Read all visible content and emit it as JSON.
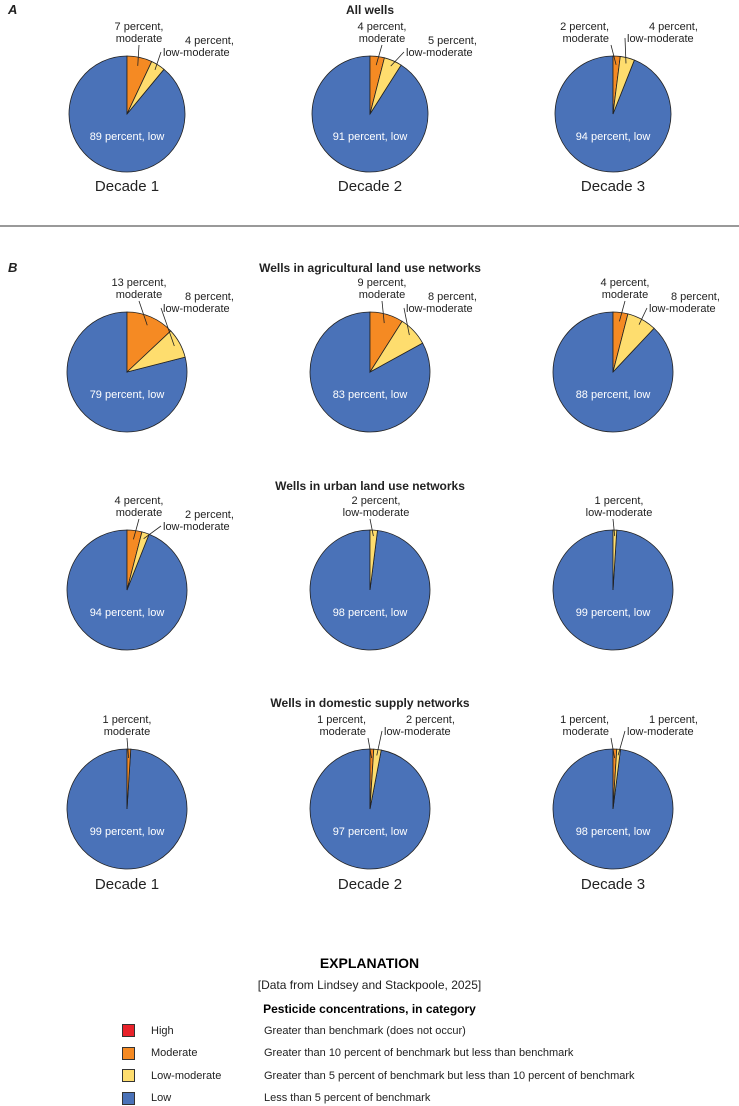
{
  "chart_data": [
    {
      "type": "pie",
      "panel": "A",
      "title": "All wells",
      "categories": [
        "Decade 1",
        "Decade 2",
        "Decade 3"
      ],
      "series": [
        {
          "moderate": 7,
          "low_moderate": 4,
          "low": 89
        },
        {
          "moderate": 4,
          "low_moderate": 5,
          "low": 91
        },
        {
          "moderate": 2,
          "low_moderate": 4,
          "low": 94
        }
      ]
    },
    {
      "type": "pie",
      "panel": "B",
      "title": "Wells in agricultural land use networks",
      "series": [
        {
          "moderate": 13,
          "low_moderate": 8,
          "low": 79
        },
        {
          "moderate": 9,
          "low_moderate": 8,
          "low": 83
        },
        {
          "moderate": 4,
          "low_moderate": 8,
          "low": 88
        }
      ]
    },
    {
      "type": "pie",
      "panel": "B",
      "title": "Wells in urban land use networks",
      "series": [
        {
          "moderate": 4,
          "low_moderate": 2,
          "low": 94
        },
        {
          "moderate": 0,
          "low_moderate": 2,
          "low": 98
        },
        {
          "moderate": 0,
          "low_moderate": 1,
          "low": 99
        }
      ]
    },
    {
      "type": "pie",
      "panel": "B",
      "title": "Wells in domestic supply networks",
      "categories": [
        "Decade 1",
        "Decade 2",
        "Decade 3"
      ],
      "series": [
        {
          "moderate": 1,
          "low_moderate": 0,
          "low": 99
        },
        {
          "moderate": 1,
          "low_moderate": 2,
          "low": 97
        },
        {
          "moderate": 1,
          "low_moderate": 1,
          "low": 98
        }
      ]
    }
  ],
  "panel_labels": {
    "a": "A",
    "b": "B"
  },
  "slice_label_suffix": {
    "moderate": "moderate",
    "low_moderate": "low-moderate",
    "low": "low"
  },
  "percent_word": "percent,",
  "colors": {
    "high": "#e8222a",
    "moderate": "#f58a23",
    "low_moderate": "#fedd6e",
    "low": "#4a72b8"
  },
  "explanation": {
    "title": "EXPLANATION",
    "source": "[Data from Lindsey and Stackpoole, 2025]",
    "subtitle": "Pesticide concentrations, in category",
    "items": [
      {
        "key": "high",
        "name": "High",
        "desc": "Greater than benchmark (does not occur)"
      },
      {
        "key": "moderate",
        "name": "Moderate",
        "desc": "Greater than 10 percent of benchmark but less than benchmark"
      },
      {
        "key": "low_moderate",
        "name": "Low-moderate",
        "desc": "Greater than 5 percent of benchmark but less than 10 percent of benchmark"
      },
      {
        "key": "low",
        "name": "Low",
        "desc": "Less than 5 percent of benchmark"
      }
    ]
  }
}
